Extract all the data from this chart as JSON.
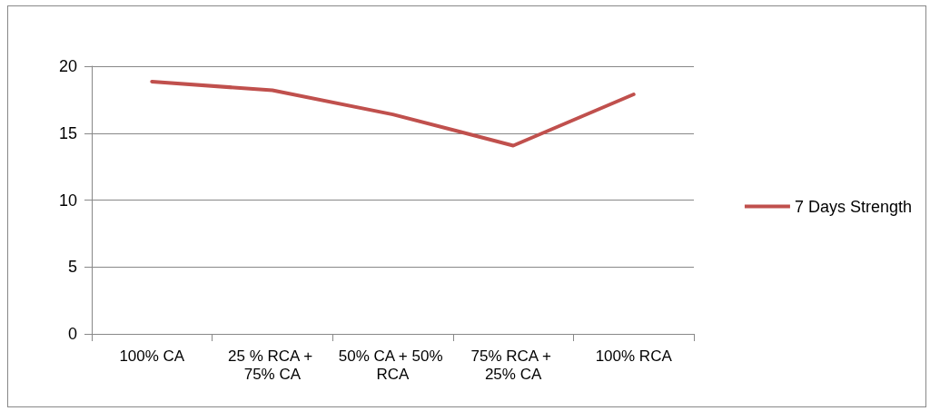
{
  "chart_data": {
    "type": "line",
    "categories": [
      "100% CA",
      "25 % RCA + 75% CA",
      "50% CA + 50% RCA",
      "75% RCA + 25% CA",
      "100% RCA"
    ],
    "series": [
      {
        "name": "7 Days Strength",
        "color": "#c0504d",
        "values": [
          18.85,
          18.2,
          16.4,
          14.07,
          17.9
        ]
      }
    ],
    "ylim": [
      0,
      20
    ],
    "yticks": [
      0,
      5,
      10,
      15,
      20
    ],
    "grid": "y",
    "legend": "right",
    "marker": "none",
    "line_style": "solid"
  }
}
